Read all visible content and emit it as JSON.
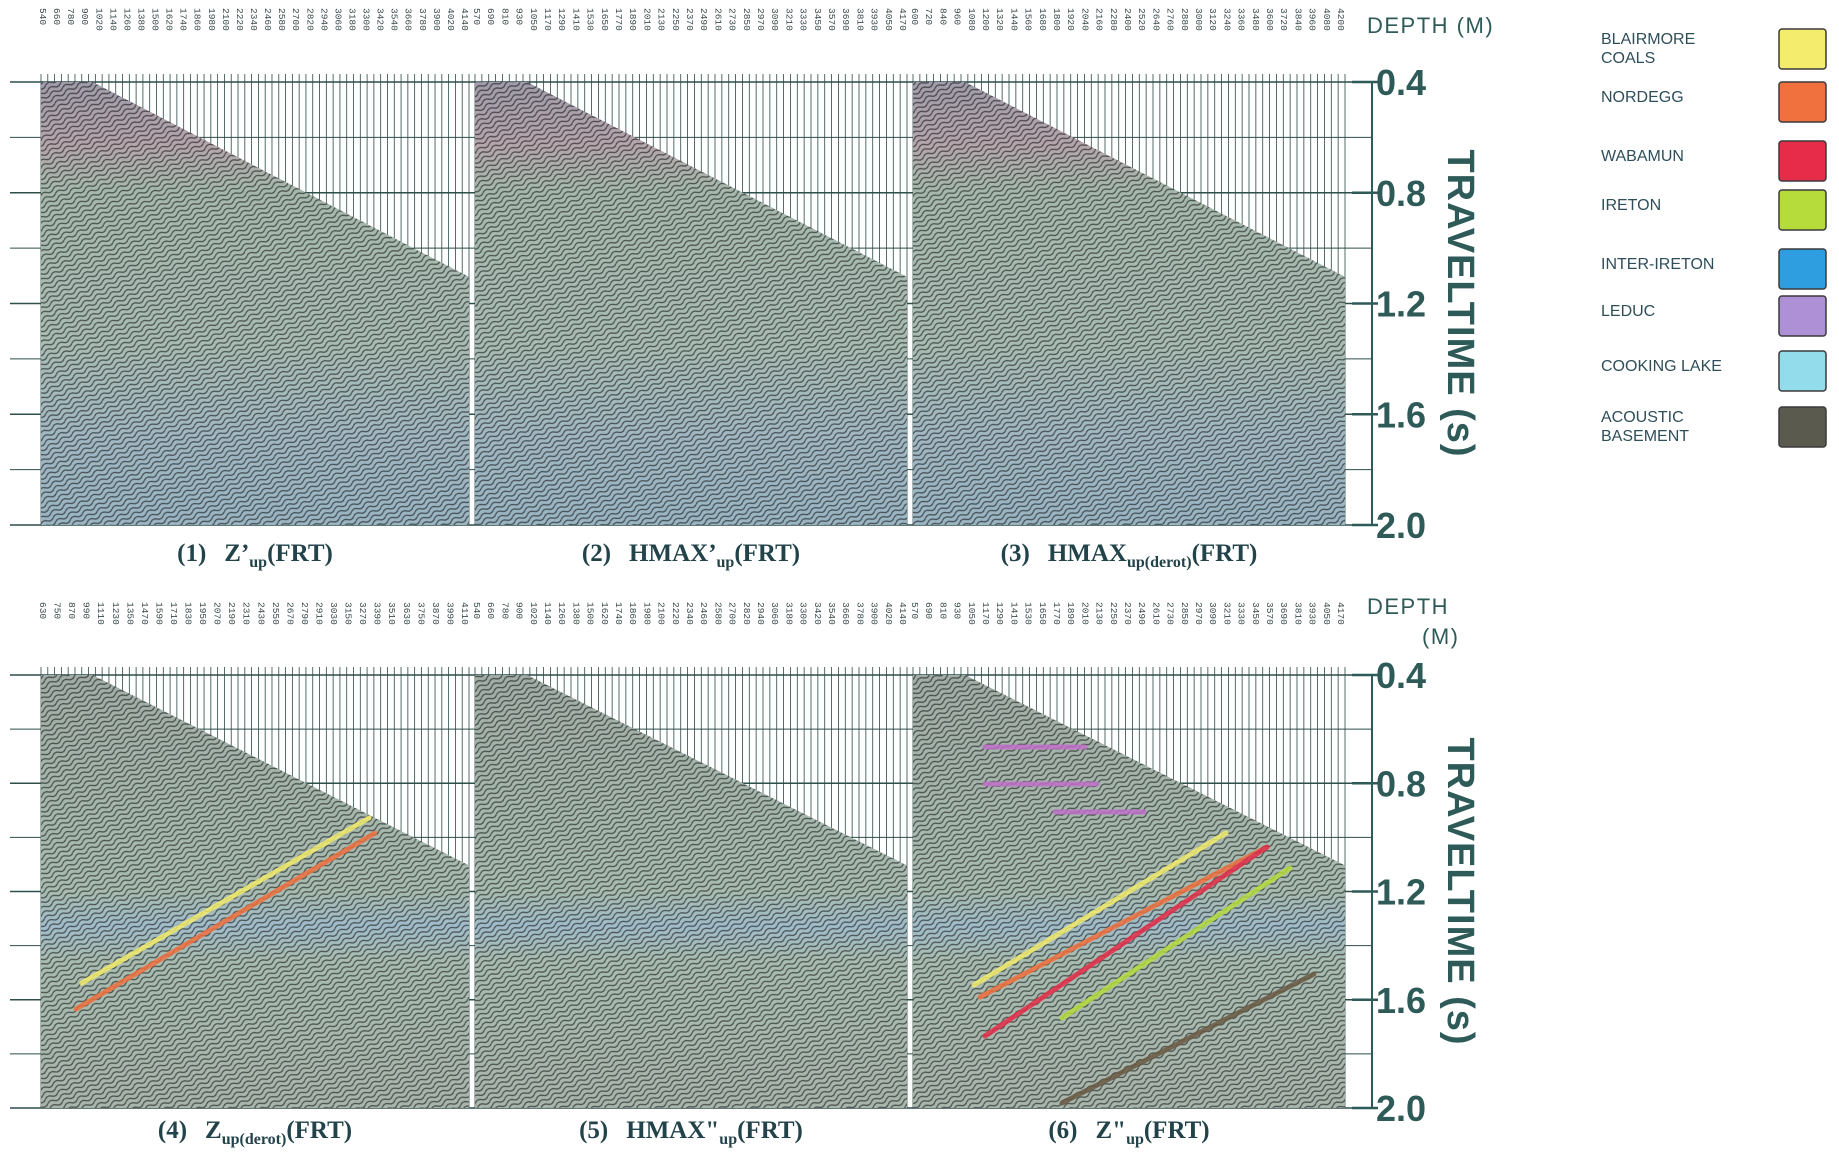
{
  "figure": {
    "top": {
      "depth_label": [
        "DEPTH (M)"
      ],
      "time_axis_label": "TRAVELTIME (s)",
      "time_ticks": [
        "0.4",
        "0.8",
        "1.2",
        "1.6",
        "2.0"
      ],
      "panels": [
        {
          "depths": [
            "540",
            "660",
            "780",
            "900",
            "1020",
            "1140",
            "1260",
            "1380",
            "1500",
            "1620",
            "1740",
            "1860",
            "1980",
            "2100",
            "2220",
            "2340",
            "2460",
            "2580",
            "2700",
            "2820",
            "2940",
            "3060",
            "3180",
            "3300",
            "3420",
            "3540",
            "3660",
            "3780",
            "3900",
            "4020",
            "4140"
          ],
          "caption": {
            "number": "(1)",
            "main": "Z’",
            "sub": "up",
            "tail": "(FRT)"
          }
        },
        {
          "depths": [
            "570",
            "690",
            "810",
            "930",
            "1050",
            "1170",
            "1290",
            "1410",
            "1530",
            "1650",
            "1770",
            "1890",
            "2010",
            "2130",
            "2250",
            "2370",
            "2490",
            "2610",
            "2730",
            "2850",
            "2970",
            "3090",
            "3210",
            "3330",
            "3450",
            "3570",
            "3690",
            "3810",
            "3930",
            "4050",
            "4170"
          ],
          "caption": {
            "number": "(2)",
            "main": "HMAX’",
            "sub": "up",
            "tail": "(FRT)"
          }
        },
        {
          "depths": [
            "600",
            "720",
            "840",
            "960",
            "1080",
            "1200",
            "1320",
            "1440",
            "1560",
            "1680",
            "1800",
            "1920",
            "2040",
            "2160",
            "2280",
            "2400",
            "2520",
            "2640",
            "2760",
            "2880",
            "3000",
            "3120",
            "3240",
            "3360",
            "3480",
            "3600",
            "3720",
            "3840",
            "3960",
            "4080",
            "4200"
          ],
          "caption": {
            "number": "(3)",
            "main": "HMAX",
            "sub": "up(derot)",
            "tail": "(FRT)"
          }
        }
      ]
    },
    "bottom": {
      "depth_label": [
        "DEPTH",
        "(M)"
      ],
      "time_axis_label": "TRAVELTIME (s)",
      "time_ticks": [
        "0.4",
        "0.8",
        "1.2",
        "1.6",
        "2.0"
      ],
      "panels": [
        {
          "depths": [
            "630",
            "750",
            "870",
            "990",
            "1110",
            "1230",
            "1350",
            "1470",
            "1590",
            "1710",
            "1830",
            "1950",
            "2070",
            "2190",
            "2310",
            "2430",
            "2550",
            "2670",
            "2790",
            "2910",
            "3030",
            "3150",
            "3270",
            "3390",
            "3510",
            "3630",
            "3750",
            "3870",
            "3990",
            "4110"
          ],
          "caption": {
            "number": "(4)",
            "main": "Z",
            "sub": "up(derot)",
            "tail": "(FRT)"
          }
        },
        {
          "depths": [
            "540",
            "660",
            "780",
            "900",
            "1020",
            "1140",
            "1260",
            "1380",
            "1500",
            "1620",
            "1740",
            "1860",
            "1980",
            "2100",
            "2220",
            "2340",
            "2460",
            "2580",
            "2700",
            "2820",
            "2940",
            "3060",
            "3180",
            "3300",
            "3420",
            "3540",
            "3660",
            "3780",
            "3900",
            "4020",
            "4140"
          ],
          "caption": {
            "number": "(5)",
            "main": "HMAX\"",
            "sub": "up",
            "tail": "(FRT)"
          }
        },
        {
          "depths": [
            "570",
            "690",
            "810",
            "930",
            "1050",
            "1170",
            "1290",
            "1410",
            "1530",
            "1650",
            "1770",
            "1890",
            "2010",
            "2130",
            "2250",
            "2370",
            "2490",
            "2610",
            "2730",
            "2850",
            "2970",
            "3090",
            "3210",
            "3330",
            "3450",
            "3570",
            "3690",
            "3810",
            "3930",
            "4050",
            "4170"
          ],
          "caption": {
            "number": "(6)",
            "main": "Z\"",
            "sub": "up",
            "tail": "(FRT)"
          }
        }
      ]
    },
    "legend": [
      {
        "label": [
          "BLAIRMORE",
          "COALS"
        ],
        "color": "#f3ec6c"
      },
      {
        "label": [
          "NORDEGG"
        ],
        "color": "#f0703e"
      },
      {
        "label": [
          "WABAMUN"
        ],
        "color": "#e62c48"
      },
      {
        "label": [
          "IRETON"
        ],
        "color": "#b6dc3c"
      },
      {
        "label": [
          "INTER-IRETON"
        ],
        "color": "#2f9ee0"
      },
      {
        "label": [
          "LEDUC"
        ],
        "color": "#ae90d6"
      },
      {
        "label": [
          "COOKING LAKE"
        ],
        "color": "#92dcec"
      },
      {
        "label": [
          "ACOUSTIC",
          "BASEMENT"
        ],
        "color": "#5a5a4e"
      }
    ]
  }
}
